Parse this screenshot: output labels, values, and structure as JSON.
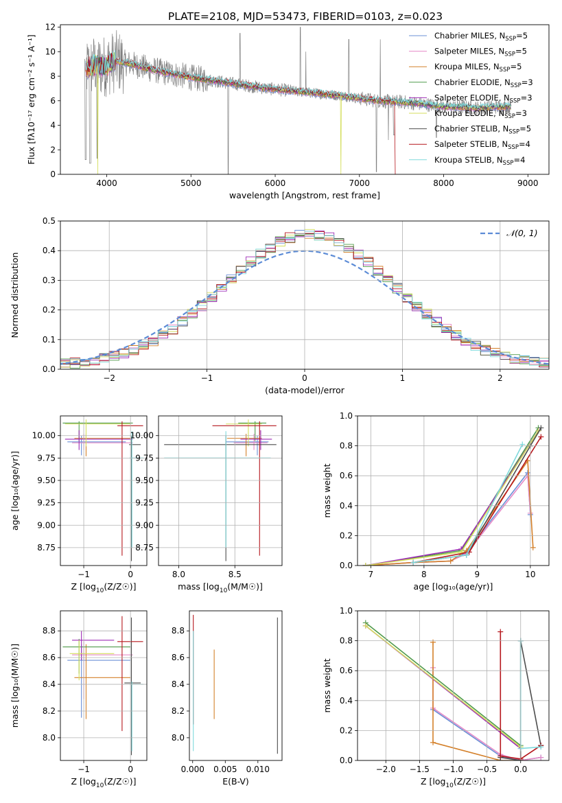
{
  "figure_title": "PLATE=2108, MJD=53473, FIBERID=0103, z=0.023",
  "colors": {
    "Chabrier MILES": "#6a8fd6",
    "Salpeter MILES": "#e58ac7",
    "Kroupa MILES": "#d4802a",
    "Chabrier ELODIE": "#4f9a4a",
    "Salpeter ELODIE": "#9d2bb5",
    "Kroupa ELODIE": "#d4de5c",
    "Chabrier STELIB": "#4d4d4d",
    "Salpeter STELIB": "#b5161c",
    "Kroupa STELIB": "#7fd9dc",
    "data": "#808080",
    "normal": "#5b8bd6"
  },
  "chart_data": [
    {
      "id": "spectrum",
      "type": "line",
      "xlabel": "wavelength [Angstrom, rest frame]",
      "ylabel": "Flux [fλ10⁻¹⁷ erg cm⁻² s⁻¹ A⁻¹]",
      "xlim": [
        3450,
        9250
      ],
      "ylim": [
        0,
        12.2
      ],
      "xticks": [
        4000,
        5000,
        6000,
        7000,
        8000,
        9000
      ],
      "yticks": [
        0,
        2,
        4,
        6,
        8,
        10,
        12
      ],
      "legend_placement": "upper-right",
      "series": [
        {
          "name": "Chabrier MILES, N",
          "sub": "SSP",
          "suffix": "=5"
        },
        {
          "name": "Salpeter MILES, N",
          "sub": "SSP",
          "suffix": "=5"
        },
        {
          "name": "Kroupa MILES, N",
          "sub": "SSP",
          "suffix": "=5"
        },
        {
          "name": "Chabrier ELODIE, N",
          "sub": "SSP",
          "suffix": "=3"
        },
        {
          "name": "Salpeter ELODIE, N",
          "sub": "SSP",
          "suffix": "=3"
        },
        {
          "name": "Kroupa ELODIE, N",
          "sub": "SSP",
          "suffix": "=3"
        },
        {
          "name": "Chabrier STELIB, N",
          "sub": "SSP",
          "suffix": "=5"
        },
        {
          "name": "Salpeter STELIB, N",
          "sub": "SSP",
          "suffix": "=4"
        },
        {
          "name": "Kroupa STELIB, N",
          "sub": "SSP",
          "suffix": "=4"
        }
      ],
      "continuum": [
        [
          3750,
          8.6
        ],
        [
          3850,
          8.9
        ],
        [
          3950,
          8.8
        ],
        [
          4000,
          8.9
        ],
        [
          4100,
          9.2
        ],
        [
          4300,
          9.0
        ],
        [
          4500,
          8.6
        ],
        [
          4700,
          8.3
        ],
        [
          5000,
          7.9
        ],
        [
          5300,
          7.6
        ],
        [
          5600,
          7.3
        ],
        [
          5900,
          7.0
        ],
        [
          6200,
          6.8
        ],
        [
          6500,
          6.6
        ],
        [
          6800,
          6.4
        ],
        [
          7000,
          6.2
        ],
        [
          7200,
          6.0
        ],
        [
          7500,
          5.9
        ],
        [
          7800,
          5.7
        ],
        [
          8000,
          5.5
        ],
        [
          8200,
          5.5
        ],
        [
          8400,
          5.4
        ],
        [
          8600,
          5.5
        ]
      ]
    },
    {
      "id": "residuals",
      "type": "histogram",
      "xlabel": "(data-model)/error",
      "ylabel": "Normed distribution",
      "xlim": [
        -2.5,
        2.5
      ],
      "ylim": [
        0,
        0.5
      ],
      "xticks": [
        -2,
        -1,
        0,
        1,
        2
      ],
      "yticks": [
        0.0,
        0.1,
        0.2,
        0.3,
        0.4,
        0.5
      ],
      "grid": true,
      "legend_placement": "upper-right",
      "legend": "𝒩(0, 1)",
      "bin_width": 0.1,
      "curve": "normal(0,1)"
    },
    {
      "id": "age_vs_Z",
      "type": "errorbar",
      "xlabel_pre": "Z [log",
      "xlabel_sub": "10",
      "xlabel_post": "(Z/Z☉)]",
      "ylabel": "age  [log₁₀(age/yr)]",
      "xlim": [
        -1.5,
        0.35
      ],
      "ylim": [
        8.55,
        10.22
      ],
      "xticks": [
        -1,
        0
      ],
      "yticks": [
        8.75,
        9.0,
        9.25,
        9.5,
        9.75,
        10.0
      ],
      "grid": true,
      "points": [
        {
          "model": "Chabrier MILES",
          "x": -1.05,
          "y": 9.93,
          "xerr": [
            0.3,
            0.95
          ],
          "yerr": [
            0.15,
            0.07
          ]
        },
        {
          "model": "Salpeter MILES",
          "x": -1.0,
          "y": 9.92,
          "xerr": [
            0.25,
            1.05
          ],
          "yerr": [
            0.08,
            0.1
          ]
        },
        {
          "model": "Kroupa MILES",
          "x": -0.95,
          "y": 9.97,
          "xerr": [
            0.25,
            0.95
          ],
          "yerr": [
            0.2,
            0.05
          ]
        },
        {
          "model": "Chabrier ELODIE",
          "x": -1.1,
          "y": 10.14,
          "xerr": [
            0.35,
            1.15
          ],
          "yerr": [
            0.2,
            0.02
          ]
        },
        {
          "model": "Salpeter ELODIE",
          "x": -1.1,
          "y": 9.96,
          "xerr": [
            0.3,
            1.15
          ],
          "yerr": [
            0.12,
            0.1
          ]
        },
        {
          "model": "Kroupa ELODIE",
          "x": -0.95,
          "y": 10.13,
          "xerr": [
            0.45,
            0.95
          ],
          "yerr": [
            0.25,
            0.05
          ]
        },
        {
          "model": "Chabrier STELIB",
          "x": 0.02,
          "y": 9.9,
          "xerr": [
            0.05,
            0.2
          ],
          "yerr": [
            1.3,
            0.1
          ]
        },
        {
          "model": "Salpeter STELIB",
          "x": -0.18,
          "y": 10.11,
          "xerr": [
            0.1,
            0.45
          ],
          "yerr": [
            1.45,
            0.05
          ]
        },
        {
          "model": "Kroupa STELIB",
          "x": 0.03,
          "y": 9.75,
          "xerr": [
            0.05,
            0.25
          ],
          "yerr": [
            1.0,
            0.3
          ]
        }
      ]
    },
    {
      "id": "age_vs_mass",
      "type": "errorbar",
      "xlabel_pre": "mass [log",
      "xlabel_sub": "10",
      "xlabel_post": "(M/M☉)]",
      "xlim": [
        7.82,
        8.92
      ],
      "ylim": [
        8.55,
        10.22
      ],
      "xticks": [
        8.0,
        8.5
      ],
      "yticks": [
        8.75,
        9.0,
        9.25,
        9.5,
        9.75,
        10.0
      ],
      "grid": true,
      "points": [
        {
          "model": "Chabrier MILES",
          "x": 8.7,
          "y": 9.93,
          "xerr": [
            0.28,
            0.1
          ],
          "yerr": [
            0.15,
            0.07
          ]
        },
        {
          "model": "Salpeter MILES",
          "x": 8.67,
          "y": 9.92,
          "xerr": [
            0.18,
            0.12
          ],
          "yerr": [
            0.08,
            0.1
          ]
        },
        {
          "model": "Kroupa MILES",
          "x": 8.6,
          "y": 9.97,
          "xerr": [
            0.17,
            0.14
          ],
          "yerr": [
            0.2,
            0.05
          ]
        },
        {
          "model": "Chabrier ELODIE",
          "x": 8.68,
          "y": 10.14,
          "xerr": [
            0.15,
            0.1
          ],
          "yerr": [
            0.2,
            0.02
          ]
        },
        {
          "model": "Salpeter ELODIE",
          "x": 8.73,
          "y": 9.96,
          "xerr": [
            0.18,
            0.1
          ],
          "yerr": [
            0.12,
            0.1
          ]
        },
        {
          "model": "Kroupa ELODIE",
          "x": 8.62,
          "y": 10.13,
          "xerr": [
            0.2,
            0.12
          ],
          "yerr": [
            0.25,
            0.05
          ]
        },
        {
          "model": "Chabrier STELIB",
          "x": 8.42,
          "y": 9.9,
          "xerr": [
            0.55,
            0.45
          ],
          "yerr": [
            1.3,
            0.1
          ]
        },
        {
          "model": "Salpeter STELIB",
          "x": 8.72,
          "y": 10.11,
          "xerr": [
            0.42,
            0.15
          ],
          "yerr": [
            1.45,
            0.05
          ]
        },
        {
          "model": "Kroupa STELIB",
          "x": 8.42,
          "y": 9.75,
          "xerr": [
            0.55,
            0.4
          ],
          "yerr": [
            1.0,
            0.3
          ]
        }
      ]
    },
    {
      "id": "weight_vs_age",
      "type": "line",
      "xlabel": "age  [log₁₀(age/yr)]",
      "ylabel": "mass weight",
      "xlim": [
        6.75,
        10.35
      ],
      "ylim": [
        0,
        1.0
      ],
      "xticks": [
        7,
        8,
        9,
        10
      ],
      "yticks": [
        0.0,
        0.2,
        0.4,
        0.6,
        0.8,
        1.0
      ],
      "grid": true,
      "series": [
        {
          "model": "Chabrier MILES",
          "x": [
            6.9,
            7.8,
            8.5,
            8.8,
            9.95,
            10.0
          ],
          "y": [
            0.0,
            0.02,
            0.03,
            0.09,
            0.62,
            0.34
          ]
        },
        {
          "model": "Salpeter MILES",
          "x": [
            6.9,
            7.8,
            8.5,
            8.8,
            9.95,
            10.0
          ],
          "y": [
            0.0,
            0.02,
            0.03,
            0.08,
            0.6,
            0.35
          ]
        },
        {
          "model": "Kroupa MILES",
          "x": [
            6.9,
            7.8,
            8.5,
            8.8,
            9.95,
            10.05
          ],
          "y": [
            0.0,
            0.02,
            0.03,
            0.1,
            0.7,
            0.12
          ]
        },
        {
          "model": "Chabrier ELODIE",
          "x": [
            6.9,
            8.7,
            10.15
          ],
          "y": [
            0.0,
            0.1,
            0.92
          ]
        },
        {
          "model": "Salpeter ELODIE",
          "x": [
            6.9,
            8.7,
            10.15
          ],
          "y": [
            0.0,
            0.11,
            0.9
          ]
        },
        {
          "model": "Kroupa ELODIE",
          "x": [
            6.9,
            8.7,
            10.15
          ],
          "y": [
            0.0,
            0.09,
            0.9
          ]
        },
        {
          "model": "Chabrier STELIB",
          "x": [
            7.8,
            8.8,
            10.0,
            10.2
          ],
          "y": [
            0.02,
            0.07,
            0.8,
            0.92
          ]
        },
        {
          "model": "Salpeter STELIB",
          "x": [
            7.8,
            8.85,
            10.2
          ],
          "y": [
            0.02,
            0.09,
            0.86
          ]
        },
        {
          "model": "Kroupa STELIB",
          "x": [
            7.8,
            8.8,
            9.85
          ],
          "y": [
            0.02,
            0.07,
            0.81
          ]
        }
      ]
    },
    {
      "id": "mass_vs_Z",
      "type": "errorbar",
      "xlabel_pre": "Z [log",
      "xlabel_sub": "10",
      "xlabel_post": "(Z/Z☉)]",
      "ylabel": "mass [log₁₀(M/M☉)]",
      "xlim": [
        -1.5,
        0.35
      ],
      "ylim": [
        7.83,
        8.95
      ],
      "xticks": [
        -1,
        0
      ],
      "yticks": [
        8.0,
        8.2,
        8.4,
        8.6,
        8.8
      ],
      "grid": true,
      "points": [
        {
          "model": "Chabrier MILES",
          "x": -1.05,
          "y": 8.58,
          "xerr": [
            0.3,
            1.05
          ],
          "yerr": [
            0.43,
            0.12
          ]
        },
        {
          "model": "Salpeter MILES",
          "x": -1.0,
          "y": 8.62,
          "xerr": [
            0.25,
            1.05
          ],
          "yerr": [
            0.33,
            0.1
          ]
        },
        {
          "model": "Kroupa MILES",
          "x": -0.95,
          "y": 8.45,
          "xerr": [
            0.25,
            0.95
          ],
          "yerr": [
            0.31,
            0.25
          ]
        },
        {
          "model": "Chabrier ELODIE",
          "x": -1.1,
          "y": 8.68,
          "xerr": [
            0.35,
            1.1
          ],
          "yerr": [
            0.2,
            0.06
          ]
        },
        {
          "model": "Salpeter ELODIE",
          "x": -1.05,
          "y": 8.73,
          "xerr": [
            0.2,
            0.7
          ],
          "yerr": [
            0.15,
            0.07
          ]
        },
        {
          "model": "Kroupa ELODIE",
          "x": -1.1,
          "y": 8.63,
          "xerr": [
            0.2,
            0.75
          ],
          "yerr": [
            0.2,
            0.1
          ]
        },
        {
          "model": "Chabrier STELIB",
          "x": 0.02,
          "y": 8.41,
          "xerr": [
            0.15,
            0.2
          ],
          "yerr": [
            0.54,
            0.49
          ]
        },
        {
          "model": "Salpeter STELIB",
          "x": -0.18,
          "y": 8.72,
          "xerr": [
            0.1,
            0.45
          ],
          "yerr": [
            0.67,
            0.19
          ]
        },
        {
          "model": "Kroupa STELIB",
          "x": 0.03,
          "y": 8.4,
          "xerr": [
            0.05,
            0.25
          ],
          "yerr": [
            0.5,
            0.02
          ]
        }
      ]
    },
    {
      "id": "mass_vs_ebv",
      "type": "errorbar",
      "xlabel": "E(B-V)",
      "xlim": [
        -0.0005,
        0.0137
      ],
      "ylim": [
        7.83,
        8.95
      ],
      "xticks": [
        0.0,
        0.005,
        0.01
      ],
      "xticklabels": [
        "0.000",
        "0.005",
        "0.010"
      ],
      "yticks": [
        8.0,
        8.2,
        8.4,
        8.6,
        8.8
      ],
      "grid": false,
      "points": [
        {
          "model": "Kroupa MILES",
          "x": 0.0033,
          "y": 8.4,
          "xerr": [
            0,
            0
          ],
          "yerr": [
            0.26,
            0.26
          ]
        },
        {
          "model": "Chabrier STELIB",
          "x": 0.013,
          "y": 8.38,
          "xerr": [
            0,
            0
          ],
          "yerr": [
            0.5,
            0.52
          ]
        },
        {
          "model": "Salpeter STELIB",
          "x": 0.0001,
          "y": 8.6,
          "xerr": [
            0,
            0
          ],
          "yerr": [
            0.5,
            0.32
          ]
        },
        {
          "model": "Kroupa STELIB",
          "x": 0.0001,
          "y": 8.4,
          "xerr": [
            0,
            0
          ],
          "yerr": [
            0.5,
            0.4
          ]
        }
      ]
    },
    {
      "id": "weight_vs_Z",
      "type": "line",
      "xlabel_pre": "Z [log",
      "xlabel_sub": "10",
      "xlabel_post": "(Z/Z☉)]",
      "ylabel": "mass weight",
      "xlim": [
        -2.42,
        0.42
      ],
      "ylim": [
        0,
        1.0
      ],
      "xticks": [
        -2.0,
        -1.5,
        -1.0,
        -0.5,
        0.0
      ],
      "yticks": [
        0.0,
        0.2,
        0.4,
        0.6,
        0.8,
        1.0
      ],
      "grid": true,
      "series": [
        {
          "model": "Chabrier MILES",
          "x": [
            -1.3,
            -0.3,
            0.0,
            0.3
          ],
          "y": [
            0.34,
            0.03,
            0.0,
            0.02
          ]
        },
        {
          "model": "Salpeter MILES",
          "x": [
            -1.3,
            -1.3,
            -0.3,
            0.0,
            0.3
          ],
          "y": [
            0.62,
            0.35,
            0.04,
            0.0,
            0.02
          ]
        },
        {
          "model": "Kroupa MILES",
          "x": [
            -1.3,
            -1.3,
            -0.3,
            0.0
          ],
          "y": [
            0.79,
            0.12,
            0.0,
            0.0
          ]
        },
        {
          "model": "Chabrier ELODIE",
          "x": [
            -2.3,
            0.0
          ],
          "y": [
            0.92,
            0.1
          ]
        },
        {
          "model": "Salpeter ELODIE",
          "x": [
            -2.3,
            0.0
          ],
          "y": [
            0.9,
            0.08
          ]
        },
        {
          "model": "Kroupa ELODIE",
          "x": [
            -2.3,
            0.0
          ],
          "y": [
            0.9,
            0.09
          ]
        },
        {
          "model": "Chabrier STELIB",
          "x": [
            -0.3,
            -0.3,
            0.0,
            0.0,
            0.3,
            0.3
          ],
          "y": [
            0.02,
            0.02,
            0.0,
            0.8,
            0.1,
            0.1
          ]
        },
        {
          "model": "Salpeter STELIB",
          "x": [
            -0.3,
            -0.3,
            0.0,
            0.3
          ],
          "y": [
            0.86,
            0.03,
            0.01,
            0.1
          ]
        },
        {
          "model": "Kroupa STELIB",
          "x": [
            0.0,
            0.0,
            0.3
          ],
          "y": [
            0.8,
            0.08,
            0.09
          ]
        }
      ]
    }
  ]
}
